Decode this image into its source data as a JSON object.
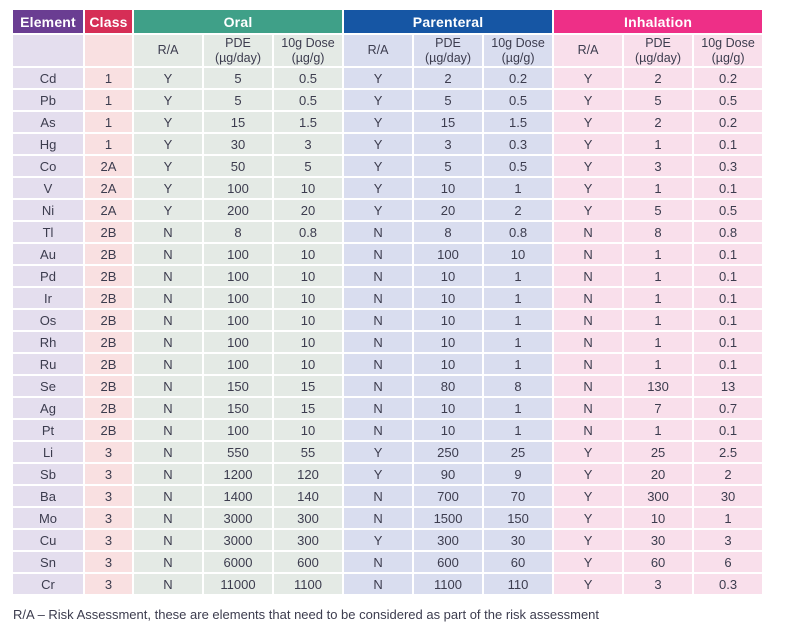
{
  "colors": {
    "element_header": "#6a3d92",
    "class_header": "#d62e56",
    "oral_header": "#3fa088",
    "parenteral_header": "#1656a4",
    "inhalation_header": "#ee2f87",
    "element_tint": "#e4deee",
    "class_tint": "#f9e0e1",
    "oral_tint": "#e4eae5",
    "parenteral_tint": "#d9ddef",
    "inhalation_tint": "#f9dfeb",
    "text": "#3c3c4e"
  },
  "table": {
    "headers": {
      "element": "Element",
      "class": "Class",
      "groups": [
        {
          "label": "Oral"
        },
        {
          "label": "Parenteral"
        },
        {
          "label": "Inhalation"
        }
      ],
      "sub": [
        "R/A",
        "PDE\n(µg/day)",
        "10g Dose\n(µg/g)"
      ]
    },
    "rows": [
      {
        "element": "Cd",
        "class": "1",
        "oral": [
          "Y",
          "5",
          "0.5"
        ],
        "parenteral": [
          "Y",
          "2",
          "0.2"
        ],
        "inhalation": [
          "Y",
          "2",
          "0.2"
        ]
      },
      {
        "element": "Pb",
        "class": "1",
        "oral": [
          "Y",
          "5",
          "0.5"
        ],
        "parenteral": [
          "Y",
          "5",
          "0.5"
        ],
        "inhalation": [
          "Y",
          "5",
          "0.5"
        ]
      },
      {
        "element": "As",
        "class": "1",
        "oral": [
          "Y",
          "15",
          "1.5"
        ],
        "parenteral": [
          "Y",
          "15",
          "1.5"
        ],
        "inhalation": [
          "Y",
          "2",
          "0.2"
        ]
      },
      {
        "element": "Hg",
        "class": "1",
        "oral": [
          "Y",
          "30",
          "3"
        ],
        "parenteral": [
          "Y",
          "3",
          "0.3"
        ],
        "inhalation": [
          "Y",
          "1",
          "0.1"
        ]
      },
      {
        "element": "Co",
        "class": "2A",
        "oral": [
          "Y",
          "50",
          "5"
        ],
        "parenteral": [
          "Y",
          "5",
          "0.5"
        ],
        "inhalation": [
          "Y",
          "3",
          "0.3"
        ]
      },
      {
        "element": "V",
        "class": "2A",
        "oral": [
          "Y",
          "100",
          "10"
        ],
        "parenteral": [
          "Y",
          "10",
          "1"
        ],
        "inhalation": [
          "Y",
          "1",
          "0.1"
        ]
      },
      {
        "element": "Ni",
        "class": "2A",
        "oral": [
          "Y",
          "200",
          "20"
        ],
        "parenteral": [
          "Y",
          "20",
          "2"
        ],
        "inhalation": [
          "Y",
          "5",
          "0.5"
        ]
      },
      {
        "element": "Tl",
        "class": "2B",
        "oral": [
          "N",
          "8",
          "0.8"
        ],
        "parenteral": [
          "N",
          "8",
          "0.8"
        ],
        "inhalation": [
          "N",
          "8",
          "0.8"
        ]
      },
      {
        "element": "Au",
        "class": "2B",
        "oral": [
          "N",
          "100",
          "10"
        ],
        "parenteral": [
          "N",
          "100",
          "10"
        ],
        "inhalation": [
          "N",
          "1",
          "0.1"
        ]
      },
      {
        "element": "Pd",
        "class": "2B",
        "oral": [
          "N",
          "100",
          "10"
        ],
        "parenteral": [
          "N",
          "10",
          "1"
        ],
        "inhalation": [
          "N",
          "1",
          "0.1"
        ]
      },
      {
        "element": "Ir",
        "class": "2B",
        "oral": [
          "N",
          "100",
          "10"
        ],
        "parenteral": [
          "N",
          "10",
          "1"
        ],
        "inhalation": [
          "N",
          "1",
          "0.1"
        ]
      },
      {
        "element": "Os",
        "class": "2B",
        "oral": [
          "N",
          "100",
          "10"
        ],
        "parenteral": [
          "N",
          "10",
          "1"
        ],
        "inhalation": [
          "N",
          "1",
          "0.1"
        ]
      },
      {
        "element": "Rh",
        "class": "2B",
        "oral": [
          "N",
          "100",
          "10"
        ],
        "parenteral": [
          "N",
          "10",
          "1"
        ],
        "inhalation": [
          "N",
          "1",
          "0.1"
        ]
      },
      {
        "element": "Ru",
        "class": "2B",
        "oral": [
          "N",
          "100",
          "10"
        ],
        "parenteral": [
          "N",
          "10",
          "1"
        ],
        "inhalation": [
          "N",
          "1",
          "0.1"
        ]
      },
      {
        "element": "Se",
        "class": "2B",
        "oral": [
          "N",
          "150",
          "15"
        ],
        "parenteral": [
          "N",
          "80",
          "8"
        ],
        "inhalation": [
          "N",
          "130",
          "13"
        ]
      },
      {
        "element": "Ag",
        "class": "2B",
        "oral": [
          "N",
          "150",
          "15"
        ],
        "parenteral": [
          "N",
          "10",
          "1"
        ],
        "inhalation": [
          "N",
          "7",
          "0.7"
        ]
      },
      {
        "element": "Pt",
        "class": "2B",
        "oral": [
          "N",
          "100",
          "10"
        ],
        "parenteral": [
          "N",
          "10",
          "1"
        ],
        "inhalation": [
          "N",
          "1",
          "0.1"
        ]
      },
      {
        "element": "Li",
        "class": "3",
        "oral": [
          "N",
          "550",
          "55"
        ],
        "parenteral": [
          "Y",
          "250",
          "25"
        ],
        "inhalation": [
          "Y",
          "25",
          "2.5"
        ]
      },
      {
        "element": "Sb",
        "class": "3",
        "oral": [
          "N",
          "1200",
          "120"
        ],
        "parenteral": [
          "Y",
          "90",
          "9"
        ],
        "inhalation": [
          "Y",
          "20",
          "2"
        ]
      },
      {
        "element": "Ba",
        "class": "3",
        "oral": [
          "N",
          "1400",
          "140"
        ],
        "parenteral": [
          "N",
          "700",
          "70"
        ],
        "inhalation": [
          "Y",
          "300",
          "30"
        ]
      },
      {
        "element": "Mo",
        "class": "3",
        "oral": [
          "N",
          "3000",
          "300"
        ],
        "parenteral": [
          "N",
          "1500",
          "150"
        ],
        "inhalation": [
          "Y",
          "10",
          "1"
        ]
      },
      {
        "element": "Cu",
        "class": "3",
        "oral": [
          "N",
          "3000",
          "300"
        ],
        "parenteral": [
          "Y",
          "300",
          "30"
        ],
        "inhalation": [
          "Y",
          "30",
          "3"
        ]
      },
      {
        "element": "Sn",
        "class": "3",
        "oral": [
          "N",
          "6000",
          "600"
        ],
        "parenteral": [
          "N",
          "600",
          "60"
        ],
        "inhalation": [
          "Y",
          "60",
          "6"
        ]
      },
      {
        "element": "Cr",
        "class": "3",
        "oral": [
          "N",
          "11000",
          "1100"
        ],
        "parenteral": [
          "N",
          "1100",
          "110"
        ],
        "inhalation": [
          "Y",
          "3",
          "0.3"
        ]
      }
    ]
  },
  "footnote": "R/A – Risk Assessment, these are elements that need to be considered as part of the risk assessment"
}
